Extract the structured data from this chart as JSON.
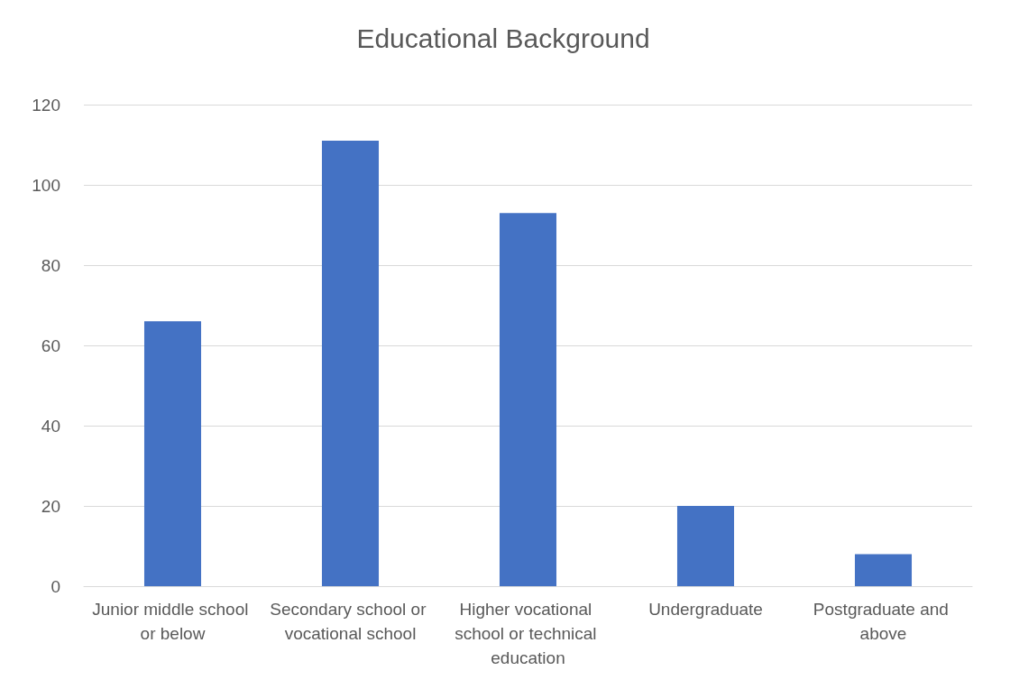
{
  "chart_data": {
    "type": "bar",
    "title": "Educational Background",
    "categories": [
      "Junior middle school or below",
      "Secondary school or vocational school",
      "Higher vocational school or technical education",
      "Undergraduate",
      "Postgraduate and above"
    ],
    "values": [
      66,
      111,
      93,
      20,
      8
    ],
    "color": "#4472c4",
    "ylim": [
      0,
      120
    ],
    "yticks": [
      0,
      20,
      40,
      60,
      80,
      100,
      120
    ],
    "grid": "y"
  }
}
